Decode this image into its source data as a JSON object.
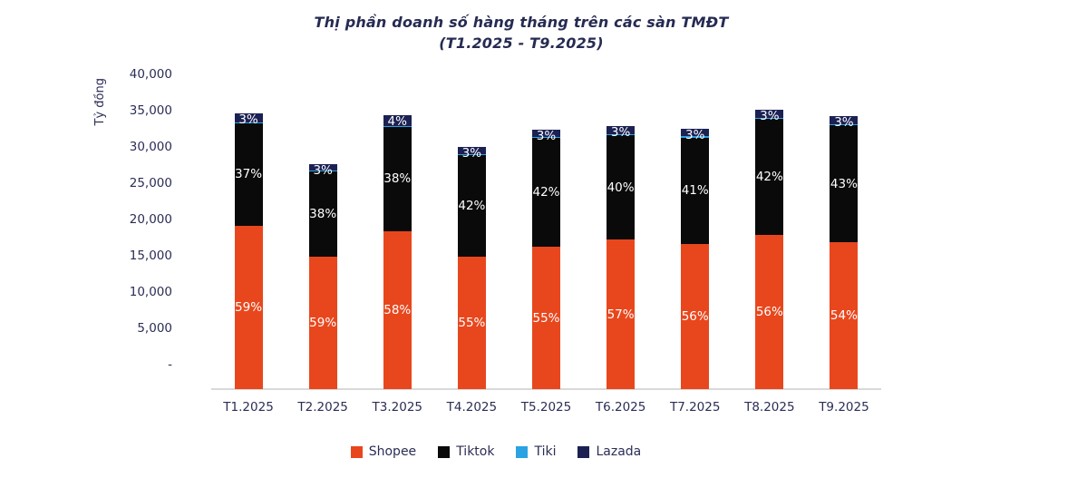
{
  "page": {
    "background": "#ffffff",
    "text_color": "#2b2e55",
    "baseline_color": "#d9d9d9"
  },
  "chart_data": {
    "type": "bar",
    "stacked": true,
    "title": "Thị phần doanh số hàng tháng trên các sàn TMĐT",
    "subtitle": "(T1.2025 - T9.2025)",
    "y_axis_title": "Tỷ đồng",
    "y_tick_labels": [
      "40,000",
      "35,000",
      "30,000",
      "25,000",
      "20,000",
      "15,000",
      "10,000",
      "5,000",
      "-"
    ],
    "y_range": [
      0,
      40000
    ],
    "grid": false,
    "legend_position": "bottom",
    "categories": [
      "T1.2025",
      "T2.2025",
      "T3.2025",
      "T4.2025",
      "T5.2025",
      "T6.2025",
      "T7.2025",
      "T8.2025",
      "T9.2025"
    ],
    "totals_ty_dong_est": [
      35000,
      28600,
      34800,
      30800,
      33000,
      33400,
      33100,
      35500,
      34700
    ],
    "series": [
      {
        "name": "Shopee",
        "color": "#e8471d",
        "labeled": true,
        "pct": [
          59,
          59,
          58,
          55,
          55,
          57,
          56,
          56,
          54
        ]
      },
      {
        "name": "Tiktok",
        "color": "#0a0a0a",
        "labeled": true,
        "pct": [
          37,
          38,
          38,
          42,
          42,
          40,
          41,
          42,
          43
        ]
      },
      {
        "name": "Tiki",
        "color": "#2ba2e2",
        "labeled": false,
        "pct": [
          0.4,
          0.4,
          0.4,
          0.4,
          0.4,
          0.4,
          0.4,
          0.4,
          0.4
        ]
      },
      {
        "name": "Lazada",
        "color": "#1b2153",
        "labeled": true,
        "pct": [
          3,
          3,
          4,
          3,
          3,
          3,
          3,
          3,
          3
        ]
      }
    ],
    "legend": [
      "Shopee",
      "Tiktok",
      "Tiki",
      "Lazada"
    ]
  }
}
